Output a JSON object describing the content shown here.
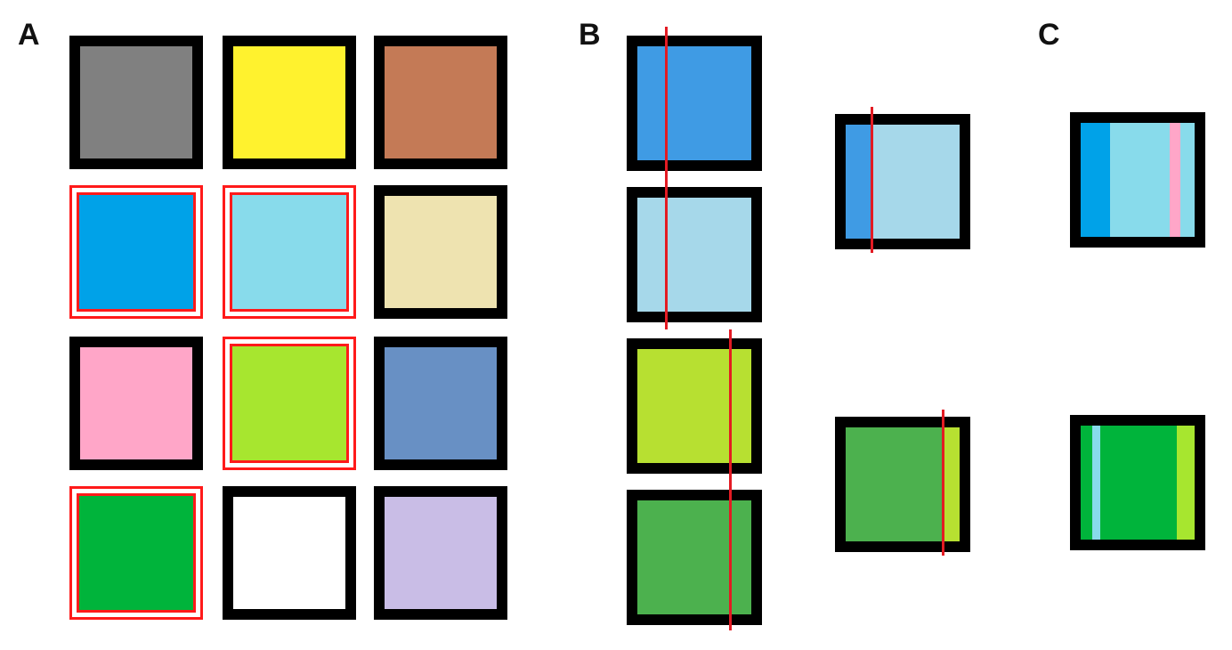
{
  "panels": {
    "a": "A",
    "b": "B",
    "c": "C"
  },
  "colors": {
    "border": "#000000",
    "highlight": "#ff1a1a",
    "cut_line": "#e31b23",
    "gray": "#808080",
    "yellow": "#fff22e",
    "brown": "#c47a56",
    "blue": "#00a2e8",
    "light_blue": "#88dbeb",
    "cream": "#eee3b0",
    "pink": "#ffa6c8",
    "lime": "#a7e62f",
    "steel_blue": "#6890c4",
    "green": "#00b43b",
    "white": "#ffffff",
    "lavender": "#c9bde6"
  },
  "panel_a_grid": [
    [
      "gray",
      "yellow",
      "brown"
    ],
    [
      "blue",
      "light_blue",
      "cream"
    ],
    [
      "pink",
      "lime",
      "steel_blue"
    ],
    [
      "green",
      "white",
      "lavender"
    ]
  ],
  "panel_a_highlighted": [
    "blue",
    "light_blue",
    "lime",
    "green"
  ],
  "panel_b_stack": [
    "#3f9be4",
    "#a6d8ea",
    "#b7e031",
    "#4cb14e"
  ],
  "panel_b_mixes": [
    {
      "colors": [
        "#3f9be4",
        "#a6d8ea"
      ],
      "split_fraction": 0.23
    },
    {
      "colors": [
        "#4cb14e",
        "#b7e031"
      ],
      "split_fraction": 0.85
    }
  ],
  "panel_c_mixes": [
    {
      "background": "#88dbeb",
      "bands": [
        {
          "color": "#00a2e8",
          "from": 0,
          "to": 0.26
        },
        {
          "color": "#ffa6c8",
          "from": 0.78,
          "to": 0.87
        }
      ]
    },
    {
      "background": "#00b43b",
      "bands": [
        {
          "color": "#88dbeb",
          "from": 0.1,
          "to": 0.17
        },
        {
          "color": "#a7e62f",
          "from": 0.84,
          "to": 1
        }
      ]
    }
  ]
}
